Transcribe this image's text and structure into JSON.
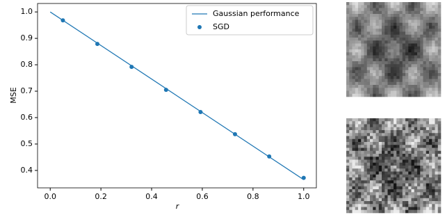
{
  "chart_data": {
    "type": "line",
    "x_label": "r",
    "y_label": "MSE",
    "xlim": [
      -0.05,
      1.05
    ],
    "ylim": [
      0.334,
      1.032
    ],
    "xticks": [
      {
        "value": 0,
        "label": "0.0"
      },
      0.2,
      0.4,
      0.6,
      0.8,
      {
        "value": 1,
        "label": "1.0"
      }
    ],
    "yticks": [
      0.4,
      0.5,
      0.6,
      0.7,
      0.8,
      0.9,
      {
        "value": 1,
        "label": "1.0"
      }
    ],
    "legend": "upper right",
    "series": [
      {
        "name": "Gaussian performance",
        "type": "line",
        "color": "#1f77b4",
        "x": [
          0,
          1
        ],
        "values": [
          1.0,
          0.365
        ]
      },
      {
        "name": "SGD",
        "type": "scatter",
        "color": "#1f77b4",
        "x": [
          0.05,
          0.186,
          0.321,
          0.457,
          0.593,
          0.729,
          0.864,
          1.0
        ],
        "values": [
          0.968,
          0.879,
          0.792,
          0.705,
          0.621,
          0.537,
          0.453,
          0.372
        ]
      }
    ]
  }
}
